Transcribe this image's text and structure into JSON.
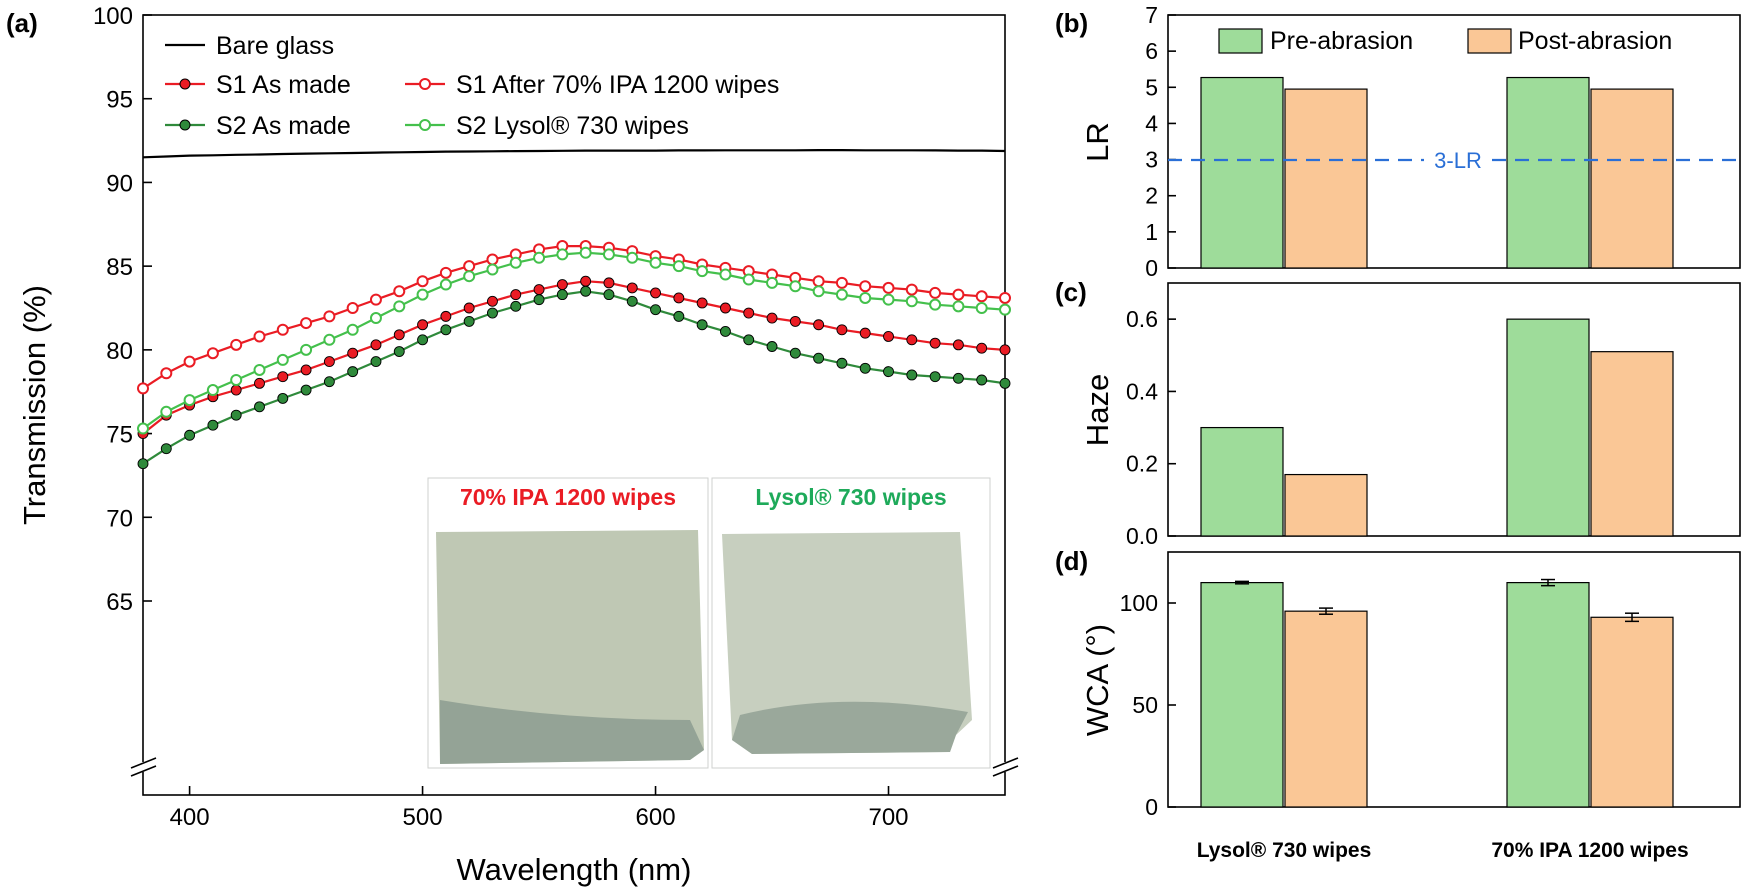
{
  "colors": {
    "black": "#000000",
    "red": "#ea1c24",
    "green_dark": "#2f8a3b",
    "green_light": "#44c04c",
    "pre_fill": "#9edc9a",
    "post_fill": "#fac796",
    "ref_line": "#2a6fd6",
    "inset_red": "#ea1c24",
    "inset_green": "#1eaa5a"
  },
  "chart_data": [
    {
      "type": "line",
      "panel_label": "(a)",
      "xlabel": "Wavelength (nm)",
      "ylabel": "Transmission (%)",
      "xlim": [
        380,
        750
      ],
      "ylim": [
        60,
        100
      ],
      "axis_break": true,
      "x_ticks": [
        400,
        500,
        600,
        700
      ],
      "x_tick_labels": [
        "400",
        "500",
        "600",
        "700"
      ],
      "y_ticks": [
        65,
        70,
        75,
        80,
        85,
        90,
        95,
        100
      ],
      "y_tick_labels": [
        "65",
        "70",
        "75",
        "80",
        "85",
        "90",
        "95",
        "100"
      ],
      "legend_position": "top-left",
      "x": [
        380,
        390,
        400,
        410,
        420,
        430,
        440,
        450,
        460,
        470,
        480,
        490,
        500,
        510,
        520,
        530,
        540,
        550,
        560,
        570,
        580,
        590,
        600,
        610,
        620,
        630,
        640,
        650,
        660,
        670,
        680,
        690,
        700,
        710,
        720,
        730,
        740,
        750
      ],
      "series": [
        {
          "name": "Bare glass",
          "style": "line",
          "color_key": "black",
          "values": [
            91.5,
            91.55,
            91.6,
            91.62,
            91.65,
            91.67,
            91.7,
            91.72,
            91.74,
            91.76,
            91.78,
            91.8,
            91.82,
            91.84,
            91.85,
            91.86,
            91.87,
            91.88,
            91.89,
            91.9,
            91.9,
            91.9,
            91.9,
            91.91,
            91.91,
            91.92,
            91.92,
            91.92,
            91.92,
            91.93,
            91.93,
            91.92,
            91.92,
            91.92,
            91.91,
            91.9,
            91.9,
            91.88
          ]
        },
        {
          "name": "S1 As made",
          "style": "filled-marker",
          "color_key": "red",
          "values": [
            75.0,
            76.1,
            76.7,
            77.2,
            77.6,
            78.0,
            78.4,
            78.8,
            79.3,
            79.8,
            80.3,
            80.9,
            81.5,
            82.0,
            82.5,
            82.9,
            83.3,
            83.6,
            83.9,
            84.1,
            84.0,
            83.7,
            83.4,
            83.1,
            82.8,
            82.5,
            82.2,
            81.9,
            81.7,
            81.5,
            81.2,
            81.0,
            80.8,
            80.6,
            80.4,
            80.3,
            80.1,
            80.0
          ]
        },
        {
          "name": "S1 After 70% IPA 1200 wipes",
          "style": "open-marker",
          "color_key": "red",
          "values": [
            77.7,
            78.6,
            79.3,
            79.8,
            80.3,
            80.8,
            81.2,
            81.6,
            82.0,
            82.5,
            83.0,
            83.5,
            84.1,
            84.6,
            85.0,
            85.4,
            85.7,
            86.0,
            86.2,
            86.2,
            86.1,
            85.9,
            85.6,
            85.4,
            85.1,
            84.9,
            84.7,
            84.5,
            84.3,
            84.1,
            84.0,
            83.8,
            83.7,
            83.6,
            83.4,
            83.3,
            83.2,
            83.1
          ]
        },
        {
          "name": "S2 As made",
          "style": "filled-marker",
          "color_key": "green_dark",
          "values": [
            73.2,
            74.1,
            74.9,
            75.5,
            76.1,
            76.6,
            77.1,
            77.6,
            78.1,
            78.7,
            79.3,
            79.9,
            80.6,
            81.2,
            81.7,
            82.2,
            82.6,
            83.0,
            83.3,
            83.5,
            83.3,
            82.9,
            82.4,
            82.0,
            81.5,
            81.1,
            80.6,
            80.2,
            79.8,
            79.5,
            79.2,
            78.9,
            78.7,
            78.5,
            78.4,
            78.3,
            78.2,
            78.0
          ]
        },
        {
          "name": "S2 Lysol® 730 wipes",
          "style": "open-marker",
          "color_key": "green_light",
          "values": [
            75.3,
            76.3,
            77.0,
            77.6,
            78.2,
            78.8,
            79.4,
            80.0,
            80.6,
            81.2,
            81.9,
            82.6,
            83.3,
            83.9,
            84.4,
            84.8,
            85.2,
            85.5,
            85.7,
            85.8,
            85.7,
            85.5,
            85.2,
            85.0,
            84.7,
            84.5,
            84.2,
            84.0,
            83.8,
            83.5,
            83.3,
            83.1,
            83.0,
            82.9,
            82.7,
            82.6,
            82.5,
            82.4
          ]
        }
      ],
      "inset": {
        "left_caption": "70% IPA 1200 wipes",
        "right_caption": "Lysol® 730 wipes"
      }
    },
    {
      "type": "bar",
      "panel_label": "(b)",
      "ylabel": "LR",
      "ylim": [
        0,
        7
      ],
      "y_ticks": [
        0,
        1,
        2,
        3,
        4,
        5,
        6,
        7
      ],
      "y_tick_labels": [
        "0",
        "1",
        "2",
        "3",
        "4",
        "5",
        "6",
        "7"
      ],
      "categories": [
        "Lysol® 730 wipes",
        "70% IPA 1200 wipes"
      ],
      "series": [
        {
          "name": "Pre-abrasion",
          "color_key": "pre_fill",
          "values": [
            5.27,
            5.27
          ]
        },
        {
          "name": "Post-abrasion",
          "color_key": "post_fill",
          "values": [
            4.95,
            4.95
          ]
        }
      ],
      "reference_line": {
        "value": 3,
        "label": "3-LR"
      },
      "legend_position": "top"
    },
    {
      "type": "bar",
      "panel_label": "(c)",
      "ylabel": "Haze",
      "ylim": [
        0,
        0.7
      ],
      "y_ticks": [
        0,
        0.2,
        0.4,
        0.6
      ],
      "y_tick_labels": [
        "0.0",
        "0.2",
        "0.4",
        "0.6"
      ],
      "categories": [
        "Lysol® 730 wipes",
        "70% IPA 1200 wipes"
      ],
      "series": [
        {
          "name": "Pre-abrasion",
          "color_key": "pre_fill",
          "values": [
            0.3,
            0.6
          ]
        },
        {
          "name": "Post-abrasion",
          "color_key": "post_fill",
          "values": [
            0.17,
            0.51
          ]
        }
      ]
    },
    {
      "type": "bar",
      "panel_label": "(d)",
      "ylabel": "WCA (°)",
      "ylim": [
        0,
        125
      ],
      "y_ticks": [
        0,
        50,
        100
      ],
      "y_tick_labels": [
        "0",
        "50",
        "100"
      ],
      "categories": [
        "Lysol® 730 wipes",
        "70% IPA 1200 wipes"
      ],
      "category_labels": [
        "Lysol® 730 wipes",
        "70% IPA 1200 wipes"
      ],
      "series": [
        {
          "name": "Pre-abrasion",
          "color_key": "pre_fill",
          "values": [
            110,
            110
          ],
          "errors": [
            0.6,
            1.5
          ]
        },
        {
          "name": "Post-abrasion",
          "color_key": "post_fill",
          "values": [
            96,
            93
          ],
          "errors": [
            1.5,
            2.0
          ]
        }
      ]
    }
  ]
}
